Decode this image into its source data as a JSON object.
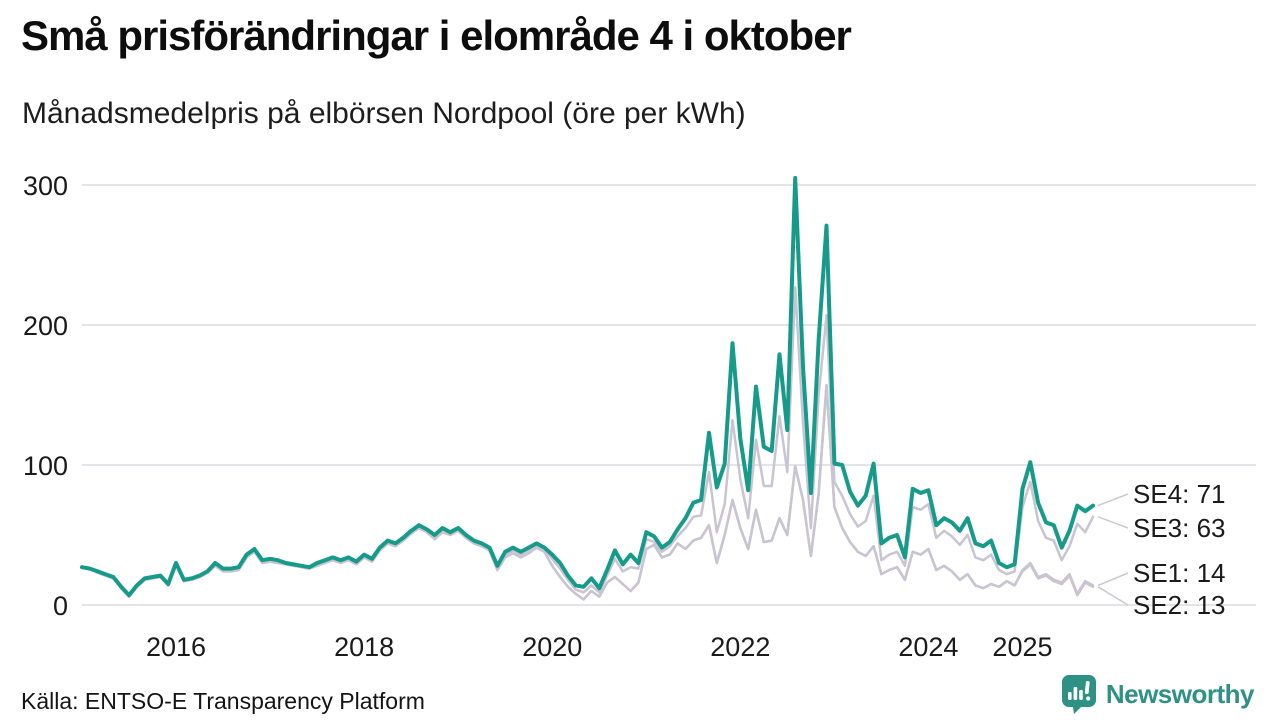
{
  "title": "Små prisförändringar i elområde 4 i oktober",
  "subtitle": "Månadsmedelpris på elbörsen Nordpool (öre per kWh)",
  "source": "Källa: ENTSO-E Transparency Platform",
  "brand": {
    "name": "Newsworthy",
    "color": "#2d9184",
    "icon": "bar-chart-speech-bubble"
  },
  "chart_data": {
    "type": "line",
    "title": "Små prisförändringar i elområde 4 i oktober",
    "subtitle": "Månadsmedelpris på elbörsen Nordpool (öre per kWh)",
    "unit": "öre per kWh",
    "x_start": "2015-01",
    "x_end": "2025-10",
    "grid": "horizontal",
    "y_ticks": [
      0,
      100,
      200,
      300
    ],
    "ylim": [
      0,
      310
    ],
    "x_ticks": [
      {
        "label": "2016",
        "month_index": 12
      },
      {
        "label": "2018",
        "month_index": 36
      },
      {
        "label": "2020",
        "month_index": 60
      },
      {
        "label": "2022",
        "month_index": 84
      },
      {
        "label": "2024",
        "month_index": 108
      },
      {
        "label": "2025",
        "month_index": 120
      }
    ],
    "colors": {
      "highlight_line": "#169b8a",
      "muted_line": "#c8c4d1",
      "gridline": "#e4e4e8",
      "muted_label": "#b9b6c3"
    },
    "legend_position": "end-of-line-labels",
    "series": [
      {
        "name": "SE4",
        "color": "#169b8a",
        "emphasis": true,
        "end_label": "SE4: 71",
        "end_value": 71,
        "values": [
          27,
          26,
          24,
          22,
          20,
          13,
          7,
          14,
          19,
          20,
          21,
          15,
          30,
          18,
          19,
          21,
          24,
          30,
          26,
          26,
          27,
          36,
          40,
          32,
          33,
          32,
          30,
          29,
          28,
          27,
          30,
          32,
          34,
          32,
          34,
          31,
          36,
          33,
          41,
          46,
          44,
          48,
          53,
          57,
          54,
          50,
          55,
          52,
          55,
          50,
          46,
          44,
          41,
          28,
          38,
          41,
          38,
          41,
          44,
          41,
          36,
          30,
          21,
          14,
          13,
          19,
          12,
          25,
          39,
          29,
          36,
          30,
          52,
          49,
          41,
          45,
          54,
          62,
          73,
          75,
          123,
          84,
          101,
          187,
          119,
          82,
          156,
          113,
          110,
          179,
          125,
          305,
          170,
          80,
          190,
          271,
          101,
          100,
          81,
          71,
          78,
          101,
          44,
          48,
          50,
          34,
          83,
          80,
          82,
          57,
          62,
          59,
          53,
          62,
          44,
          42,
          46,
          30,
          27,
          29,
          83,
          102,
          73,
          59,
          57,
          41,
          53,
          71,
          67,
          71
        ]
      },
      {
        "name": "SE3",
        "color": "#c8c4d1",
        "emphasis": false,
        "end_label": "SE3: 63",
        "end_value": 63,
        "values": [
          27,
          26,
          24,
          22,
          20,
          12,
          6,
          13,
          18,
          20,
          21,
          15,
          29,
          17,
          19,
          21,
          24,
          29,
          25,
          25,
          26,
          35,
          39,
          31,
          32,
          31,
          30,
          29,
          28,
          27,
          29,
          31,
          33,
          31,
          33,
          30,
          35,
          32,
          40,
          45,
          43,
          47,
          52,
          56,
          53,
          48,
          53,
          51,
          54,
          49,
          45,
          43,
          40,
          27,
          36,
          39,
          36,
          39,
          42,
          40,
          33,
          26,
          18,
          11,
          9,
          14,
          9,
          21,
          33,
          24,
          27,
          26,
          47,
          45,
          38,
          42,
          49,
          55,
          63,
          64,
          95,
          52,
          72,
          132,
          90,
          62,
          118,
          85,
          85,
          135,
          95,
          227,
          130,
          55,
          150,
          207,
          88,
          78,
          65,
          56,
          60,
          78,
          32,
          36,
          38,
          28,
          70,
          68,
          72,
          48,
          53,
          49,
          43,
          50,
          34,
          32,
          36,
          25,
          22,
          24,
          70,
          88,
          60,
          48,
          46,
          32,
          42,
          58,
          52,
          63
        ]
      },
      {
        "name": "SE1",
        "color": "#c8c4d1",
        "emphasis": false,
        "end_label": "SE1: 14",
        "end_value": 14,
        "values": [
          27,
          26,
          23,
          21,
          19,
          12,
          6,
          13,
          18,
          19,
          20,
          14,
          29,
          17,
          18,
          20,
          23,
          28,
          24,
          24,
          25,
          34,
          38,
          30,
          31,
          30,
          29,
          28,
          27,
          26,
          28,
          30,
          32,
          30,
          32,
          29,
          34,
          31,
          39,
          44,
          42,
          46,
          51,
          55,
          52,
          47,
          52,
          50,
          53,
          48,
          44,
          42,
          39,
          25,
          34,
          37,
          34,
          37,
          41,
          38,
          28,
          20,
          13,
          8,
          4,
          10,
          6,
          16,
          20,
          15,
          10,
          16,
          40,
          43,
          34,
          36,
          44,
          40,
          46,
          48,
          57,
          30,
          50,
          75,
          55,
          40,
          68,
          45,
          46,
          62,
          50,
          99,
          75,
          35,
          80,
          157,
          70,
          55,
          45,
          38,
          35,
          42,
          22,
          25,
          27,
          18,
          38,
          36,
          40,
          25,
          28,
          24,
          18,
          22,
          14,
          12,
          15,
          13,
          17,
          14,
          25,
          30,
          20,
          22,
          18,
          16,
          22,
          8,
          17,
          14
        ]
      },
      {
        "name": "SE2",
        "color": "#c8c4d1",
        "emphasis": false,
        "end_label": "SE2: 13",
        "end_value": 13,
        "values": [
          27,
          26,
          23,
          21,
          19,
          12,
          6,
          13,
          18,
          19,
          20,
          14,
          29,
          17,
          18,
          20,
          23,
          28,
          24,
          24,
          25,
          34,
          38,
          30,
          31,
          30,
          29,
          28,
          27,
          26,
          28,
          30,
          32,
          30,
          32,
          29,
          34,
          31,
          39,
          44,
          42,
          46,
          51,
          55,
          52,
          47,
          52,
          50,
          53,
          48,
          44,
          42,
          39,
          25,
          34,
          37,
          34,
          37,
          41,
          38,
          28,
          20,
          13,
          8,
          4,
          10,
          6,
          16,
          20,
          15,
          10,
          16,
          40,
          43,
          34,
          36,
          44,
          40,
          46,
          48,
          57,
          30,
          50,
          75,
          55,
          40,
          68,
          45,
          46,
          62,
          50,
          99,
          75,
          35,
          80,
          157,
          70,
          55,
          45,
          38,
          35,
          42,
          22,
          25,
          27,
          18,
          38,
          36,
          40,
          25,
          28,
          24,
          18,
          22,
          14,
          12,
          15,
          13,
          17,
          14,
          24,
          29,
          19,
          21,
          17,
          15,
          21,
          7,
          16,
          13
        ]
      }
    ]
  }
}
